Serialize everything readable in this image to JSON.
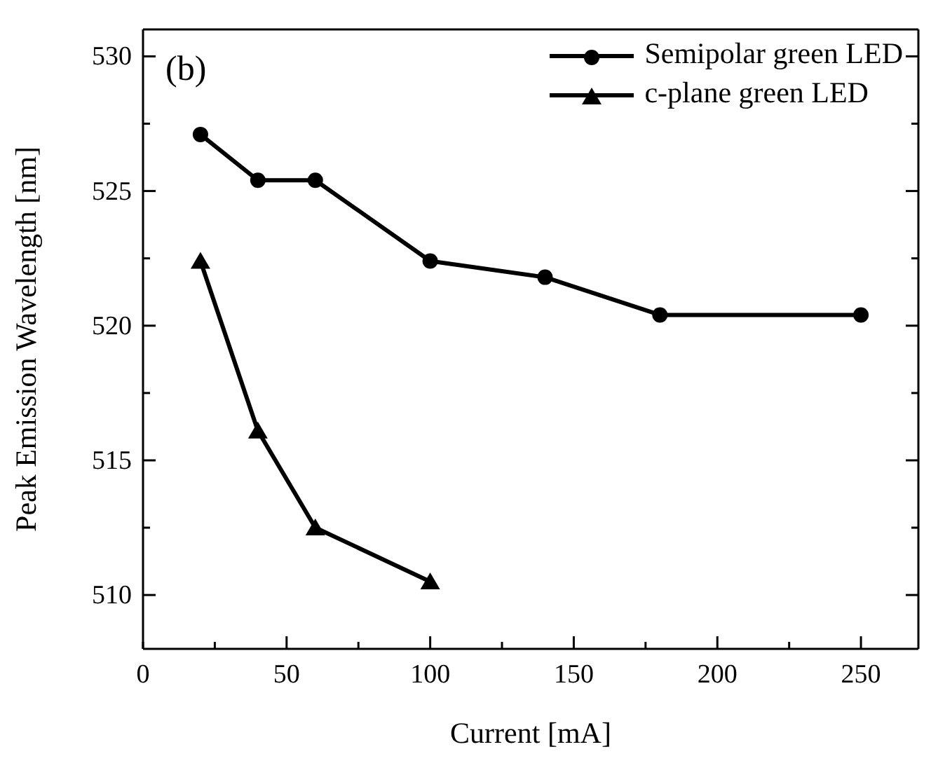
{
  "chart_data": {
    "type": "line",
    "xlabel": "Current [mA]",
    "ylabel": "Peak Emission Wavelength [nm]",
    "annotations": [
      "(b)"
    ],
    "xlim": [
      0,
      270
    ],
    "ylim": [
      508,
      531
    ],
    "xticks": [
      0,
      {
        "value": 25,
        "label": null
      },
      50,
      {
        "value": 75,
        "label": null
      },
      100,
      {
        "value": 125,
        "label": null
      },
      150,
      {
        "value": 175,
        "label": null
      },
      200,
      {
        "value": 225,
        "label": null
      },
      250
    ],
    "yticks": [
      510,
      {
        "value": 512.5,
        "label": null
      },
      515,
      {
        "value": 517.5,
        "label": null
      },
      520,
      {
        "value": 522.5,
        "label": null
      },
      525,
      {
        "value": 527.5,
        "label": null
      },
      530
    ],
    "grid": false,
    "legend": "top right",
    "line_style": "solid",
    "series": [
      {
        "name": "Semipolar green LED",
        "color": "#000000",
        "marker": "circle",
        "x": [
          20,
          40,
          60,
          100,
          140,
          180,
          250
        ],
        "values": [
          527.1,
          525.4,
          525.4,
          522.4,
          521.8,
          520.4,
          520.4
        ]
      },
      {
        "name": "c-plane green LED",
        "color": "#000000",
        "marker": "triangle",
        "x": [
          20,
          40,
          60,
          100
        ],
        "values": [
          522.4,
          516.1,
          512.5,
          510.5
        ]
      }
    ]
  }
}
